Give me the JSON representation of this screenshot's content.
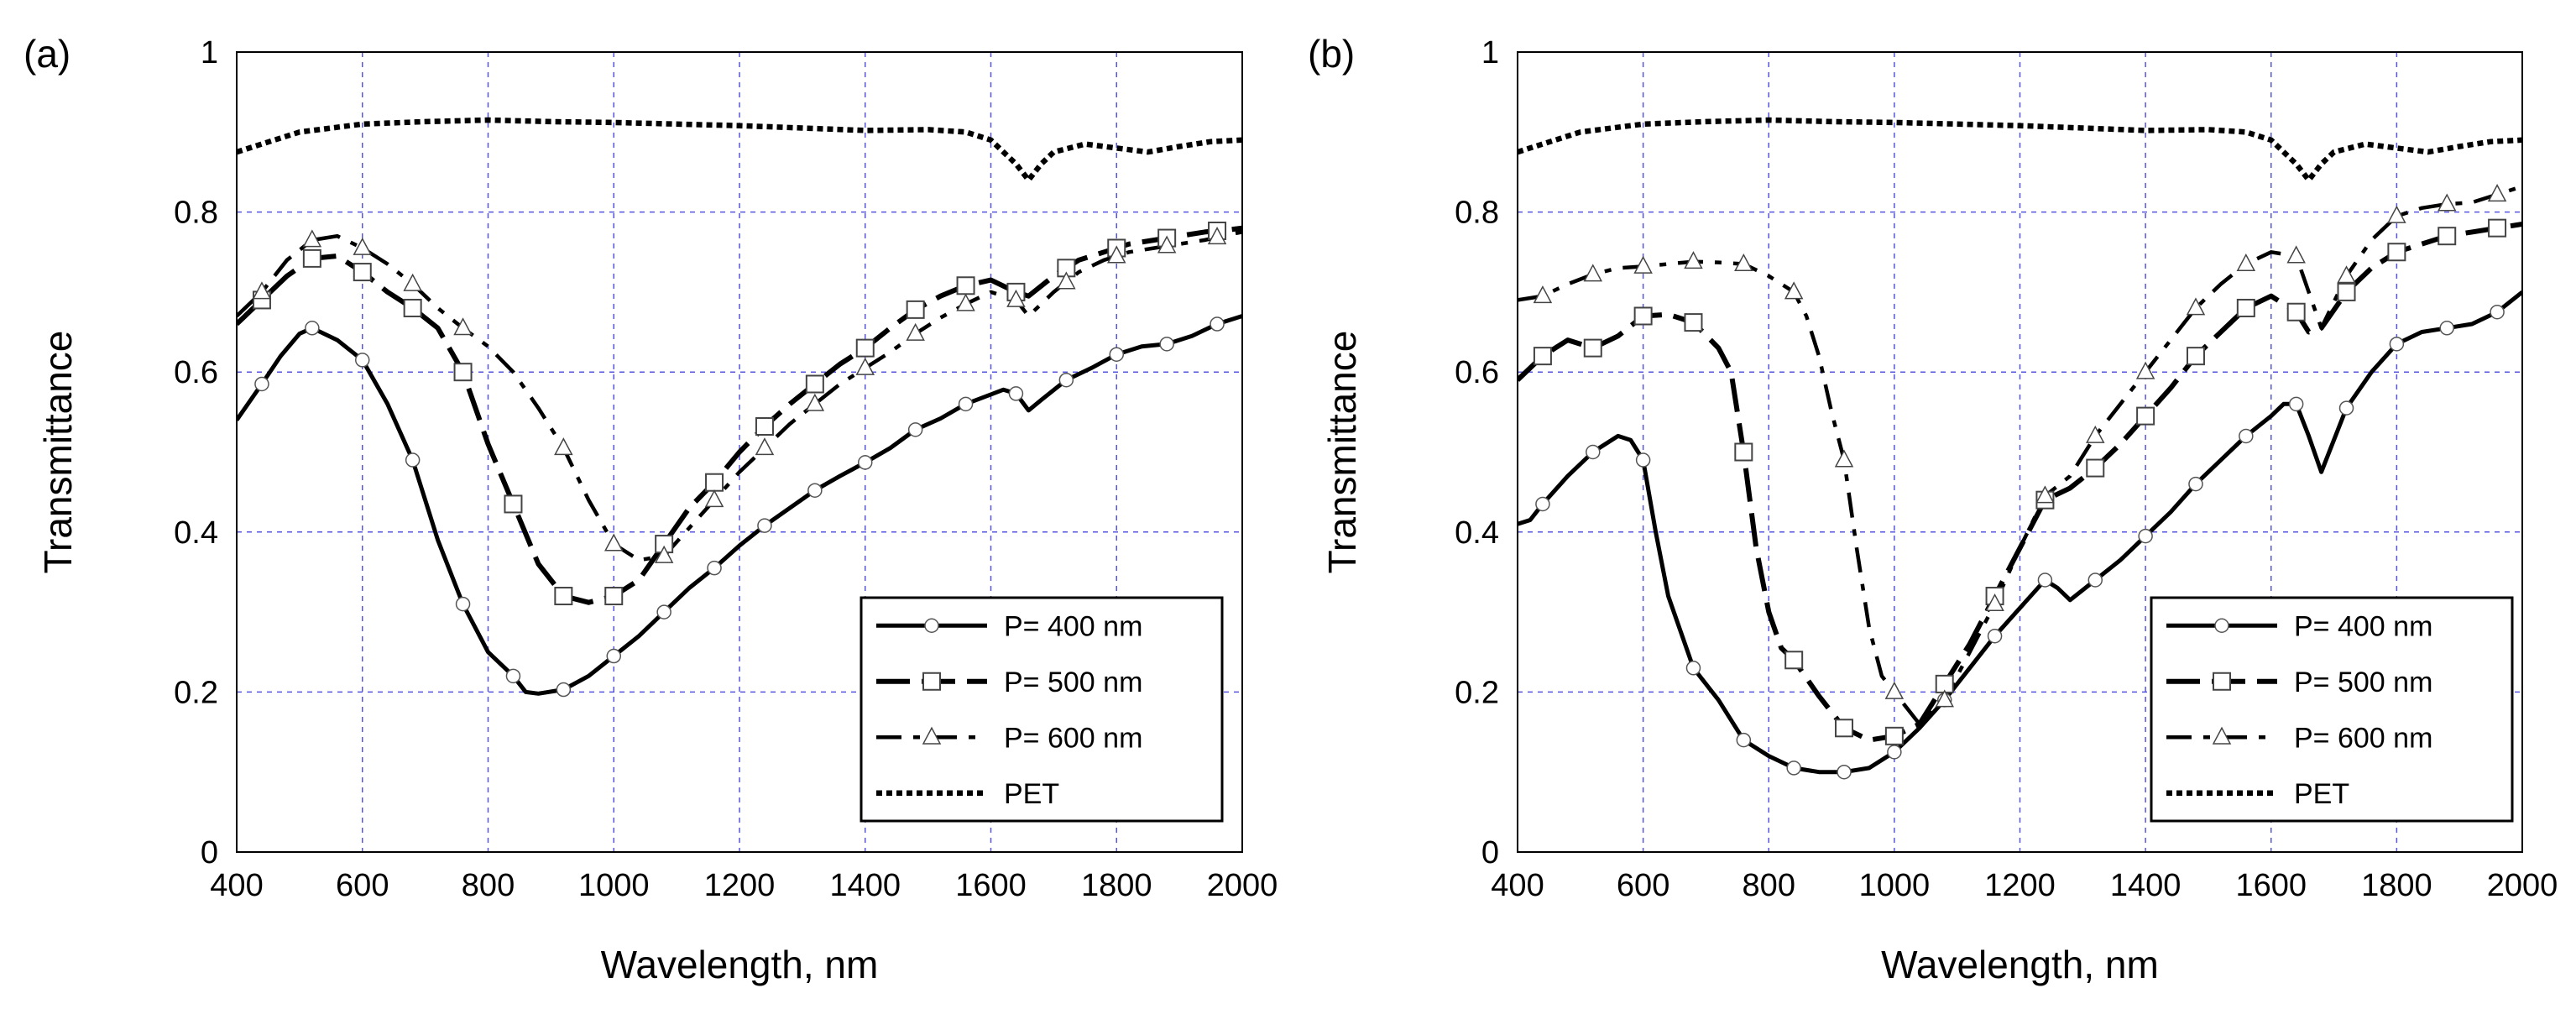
{
  "chart_data": [
    {
      "type": "line",
      "panel_label": "(a)",
      "xlabel": "Wavelength, nm",
      "ylabel": "Transmittance",
      "xlim": [
        400,
        2000
      ],
      "ylim": [
        0,
        1
      ],
      "xticks": [
        "400",
        "600",
        "800",
        "1000",
        "1200",
        "1400",
        "1600",
        "1800",
        "2000"
      ],
      "yticks": [
        "0",
        "0.2",
        "0.4",
        "0.6",
        "0.8",
        "1"
      ],
      "grid": true,
      "legend_position": "bottom-right",
      "series": [
        {
          "name": "P= 400 nm",
          "marker": "circle",
          "dash": "solid",
          "x": [
            400,
            440,
            470,
            500,
            520,
            560,
            600,
            640,
            680,
            720,
            760,
            800,
            840,
            860,
            880,
            920,
            960,
            1000,
            1040,
            1080,
            1120,
            1160,
            1200,
            1240,
            1280,
            1320,
            1360,
            1400,
            1440,
            1480,
            1520,
            1560,
            1600,
            1620,
            1640,
            1660,
            1680,
            1720,
            1760,
            1800,
            1840,
            1880,
            1920,
            1960,
            2000
          ],
          "y": [
            0.54,
            0.585,
            0.62,
            0.648,
            0.655,
            0.64,
            0.615,
            0.56,
            0.49,
            0.39,
            0.31,
            0.25,
            0.22,
            0.2,
            0.198,
            0.203,
            0.22,
            0.245,
            0.27,
            0.3,
            0.33,
            0.355,
            0.383,
            0.408,
            0.43,
            0.452,
            0.47,
            0.487,
            0.505,
            0.528,
            0.542,
            0.56,
            0.572,
            0.578,
            0.573,
            0.552,
            0.565,
            0.59,
            0.605,
            0.622,
            0.632,
            0.635,
            0.645,
            0.66,
            0.67
          ],
          "marker_x": [
            440,
            520,
            600,
            680,
            760,
            840,
            920,
            1000,
            1080,
            1160,
            1240,
            1320,
            1400,
            1480,
            1560,
            1640,
            1720,
            1800,
            1880,
            1960
          ]
        },
        {
          "name": "P= 500 nm",
          "marker": "square",
          "dash": "long",
          "x": [
            400,
            440,
            480,
            520,
            560,
            600,
            640,
            680,
            720,
            760,
            800,
            840,
            880,
            920,
            960,
            1000,
            1040,
            1080,
            1120,
            1160,
            1200,
            1240,
            1280,
            1320,
            1360,
            1400,
            1440,
            1480,
            1520,
            1560,
            1600,
            1640,
            1660,
            1700,
            1740,
            1780,
            1820,
            1860,
            1900,
            1940,
            1980,
            2000
          ],
          "y": [
            0.66,
            0.69,
            0.72,
            0.742,
            0.745,
            0.725,
            0.7,
            0.68,
            0.655,
            0.6,
            0.51,
            0.435,
            0.36,
            0.32,
            0.312,
            0.32,
            0.34,
            0.385,
            0.43,
            0.462,
            0.5,
            0.532,
            0.56,
            0.585,
            0.61,
            0.63,
            0.655,
            0.678,
            0.695,
            0.708,
            0.715,
            0.7,
            0.695,
            0.72,
            0.74,
            0.75,
            0.76,
            0.765,
            0.77,
            0.775,
            0.778,
            0.78
          ],
          "marker_x": [
            440,
            520,
            600,
            680,
            760,
            840,
            920,
            1000,
            1080,
            1160,
            1240,
            1320,
            1400,
            1480,
            1560,
            1640,
            1720,
            1800,
            1880,
            1960
          ]
        },
        {
          "name": "P= 600 nm",
          "marker": "triangle",
          "dash": "mixed",
          "x": [
            400,
            440,
            480,
            520,
            560,
            600,
            640,
            680,
            720,
            760,
            800,
            840,
            880,
            920,
            960,
            1000,
            1040,
            1080,
            1120,
            1160,
            1200,
            1240,
            1280,
            1320,
            1360,
            1400,
            1440,
            1480,
            1520,
            1560,
            1600,
            1640,
            1660,
            1700,
            1740,
            1780,
            1820,
            1860,
            1900,
            1940,
            1980,
            2000
          ],
          "y": [
            0.67,
            0.7,
            0.74,
            0.765,
            0.77,
            0.755,
            0.735,
            0.71,
            0.68,
            0.655,
            0.632,
            0.6,
            0.555,
            0.505,
            0.44,
            0.385,
            0.365,
            0.37,
            0.405,
            0.44,
            0.475,
            0.505,
            0.535,
            0.56,
            0.585,
            0.605,
            0.625,
            0.648,
            0.668,
            0.685,
            0.7,
            0.69,
            0.67,
            0.7,
            0.725,
            0.74,
            0.75,
            0.755,
            0.76,
            0.765,
            0.772,
            0.775
          ],
          "marker_x": [
            440,
            520,
            600,
            680,
            760,
            920,
            1000,
            1080,
            1160,
            1240,
            1320,
            1400,
            1480,
            1560,
            1640,
            1720,
            1800,
            1880,
            1960
          ]
        },
        {
          "name": "PET",
          "marker": "none",
          "dash": "dotted",
          "x": [
            400,
            500,
            600,
            700,
            800,
            900,
            1000,
            1100,
            1200,
            1300,
            1400,
            1500,
            1560,
            1600,
            1620,
            1640,
            1660,
            1680,
            1700,
            1750,
            1800,
            1850,
            1900,
            1950,
            2000
          ],
          "y": [
            0.875,
            0.9,
            0.91,
            0.913,
            0.915,
            0.913,
            0.912,
            0.91,
            0.908,
            0.905,
            0.902,
            0.903,
            0.9,
            0.89,
            0.875,
            0.86,
            0.84,
            0.86,
            0.875,
            0.885,
            0.88,
            0.875,
            0.882,
            0.888,
            0.89
          ]
        }
      ]
    },
    {
      "type": "line",
      "panel_label": "(b)",
      "xlabel": "Wavelength, nm",
      "ylabel": "Transmittance",
      "xlim": [
        400,
        2000
      ],
      "ylim": [
        0,
        1
      ],
      "xticks": [
        "400",
        "600",
        "800",
        "1000",
        "1200",
        "1400",
        "1600",
        "1800",
        "2000"
      ],
      "yticks": [
        "0",
        "0.2",
        "0.4",
        "0.6",
        "0.8",
        "1"
      ],
      "grid": true,
      "legend_position": "bottom-right",
      "series": [
        {
          "name": "P= 400 nm",
          "marker": "circle",
          "dash": "solid",
          "x": [
            400,
            420,
            440,
            480,
            520,
            560,
            580,
            600,
            620,
            640,
            680,
            720,
            760,
            800,
            840,
            880,
            920,
            960,
            1000,
            1040,
            1080,
            1120,
            1160,
            1200,
            1240,
            1260,
            1280,
            1320,
            1360,
            1400,
            1440,
            1480,
            1520,
            1560,
            1600,
            1620,
            1640,
            1660,
            1680,
            1720,
            1760,
            1800,
            1840,
            1880,
            1920,
            1960,
            2000
          ],
          "y": [
            0.41,
            0.415,
            0.435,
            0.47,
            0.5,
            0.52,
            0.515,
            0.49,
            0.4,
            0.32,
            0.23,
            0.19,
            0.14,
            0.12,
            0.105,
            0.1,
            0.1,
            0.105,
            0.125,
            0.155,
            0.19,
            0.23,
            0.27,
            0.305,
            0.34,
            0.33,
            0.315,
            0.34,
            0.365,
            0.395,
            0.425,
            0.46,
            0.49,
            0.52,
            0.545,
            0.56,
            0.56,
            0.52,
            0.475,
            0.555,
            0.6,
            0.635,
            0.65,
            0.655,
            0.66,
            0.675,
            0.7
          ],
          "marker_x": [
            440,
            520,
            600,
            680,
            760,
            840,
            920,
            1000,
            1080,
            1160,
            1240,
            1320,
            1400,
            1480,
            1560,
            1640,
            1720,
            1800,
            1880,
            1960
          ]
        },
        {
          "name": "P= 500 nm",
          "marker": "square",
          "dash": "long",
          "x": [
            400,
            440,
            480,
            520,
            560,
            600,
            640,
            680,
            720,
            740,
            760,
            780,
            800,
            820,
            840,
            880,
            920,
            960,
            1000,
            1040,
            1080,
            1120,
            1160,
            1200,
            1240,
            1280,
            1320,
            1360,
            1400,
            1440,
            1480,
            1520,
            1560,
            1600,
            1640,
            1660,
            1680,
            1720,
            1760,
            1800,
            1840,
            1880,
            1920,
            1960,
            2000
          ],
          "y": [
            0.59,
            0.62,
            0.64,
            0.63,
            0.645,
            0.67,
            0.672,
            0.662,
            0.63,
            0.6,
            0.5,
            0.38,
            0.3,
            0.255,
            0.24,
            0.195,
            0.155,
            0.14,
            0.145,
            0.16,
            0.21,
            0.26,
            0.32,
            0.38,
            0.44,
            0.455,
            0.48,
            0.51,
            0.545,
            0.58,
            0.62,
            0.65,
            0.68,
            0.695,
            0.675,
            0.65,
            0.655,
            0.7,
            0.73,
            0.75,
            0.76,
            0.77,
            0.775,
            0.78,
            0.785
          ],
          "marker_x": [
            440,
            520,
            600,
            680,
            760,
            840,
            920,
            1000,
            1080,
            1160,
            1240,
            1320,
            1400,
            1480,
            1560,
            1640,
            1720,
            1800,
            1880,
            1960
          ]
        },
        {
          "name": "P= 600 nm",
          "marker": "triangle",
          "dash": "mixed",
          "x": [
            400,
            440,
            480,
            520,
            560,
            600,
            640,
            680,
            720,
            760,
            800,
            840,
            860,
            880,
            900,
            920,
            940,
            960,
            980,
            1000,
            1040,
            1080,
            1120,
            1160,
            1200,
            1240,
            1280,
            1320,
            1360,
            1400,
            1440,
            1480,
            1520,
            1560,
            1600,
            1640,
            1660,
            1680,
            1720,
            1760,
            1800,
            1840,
            1880,
            1920,
            1960,
            2000
          ],
          "y": [
            0.69,
            0.695,
            0.71,
            0.722,
            0.73,
            0.732,
            0.735,
            0.738,
            0.737,
            0.735,
            0.72,
            0.7,
            0.67,
            0.62,
            0.55,
            0.49,
            0.38,
            0.28,
            0.22,
            0.2,
            0.16,
            0.19,
            0.25,
            0.31,
            0.38,
            0.445,
            0.47,
            0.52,
            0.56,
            0.6,
            0.64,
            0.68,
            0.71,
            0.735,
            0.75,
            0.745,
            0.7,
            0.655,
            0.72,
            0.765,
            0.795,
            0.805,
            0.81,
            0.812,
            0.822,
            0.832
          ],
          "marker_x": [
            440,
            520,
            600,
            680,
            760,
            840,
            920,
            1000,
            1080,
            1160,
            1240,
            1320,
            1400,
            1480,
            1560,
            1640,
            1720,
            1800,
            1880,
            1960
          ]
        },
        {
          "name": "PET",
          "marker": "none",
          "dash": "dotted",
          "x": [
            400,
            500,
            600,
            700,
            800,
            900,
            1000,
            1100,
            1200,
            1300,
            1400,
            1500,
            1560,
            1600,
            1620,
            1640,
            1660,
            1680,
            1700,
            1750,
            1800,
            1850,
            1900,
            1950,
            2000
          ],
          "y": [
            0.875,
            0.9,
            0.91,
            0.913,
            0.915,
            0.913,
            0.912,
            0.91,
            0.908,
            0.905,
            0.902,
            0.903,
            0.9,
            0.89,
            0.875,
            0.86,
            0.84,
            0.86,
            0.875,
            0.885,
            0.88,
            0.875,
            0.882,
            0.888,
            0.89
          ]
        }
      ]
    }
  ]
}
